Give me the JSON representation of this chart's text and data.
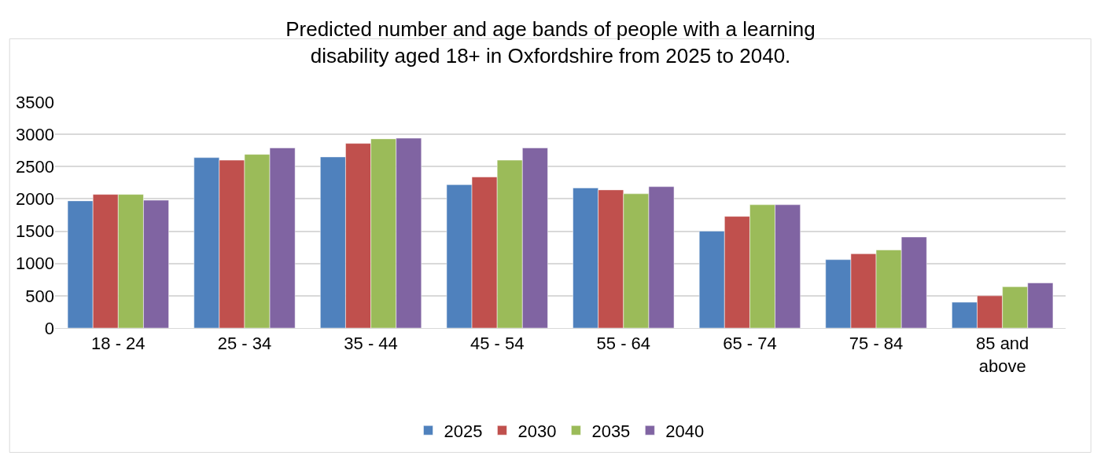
{
  "chart_data": {
    "type": "bar",
    "title": "Predicted number and age bands of people with a learning disability aged 18+ in Oxfordshire from 2025 to 2040.",
    "categories": [
      "18 - 24",
      "25 - 34",
      "35 - 44",
      "45 - 54",
      "55 - 64",
      "65 - 74",
      "75 - 84",
      "85 and above"
    ],
    "series": [
      {
        "name": "2025",
        "color": "#4f81bd",
        "values": [
          1970,
          2640,
          2650,
          2220,
          2170,
          1500,
          1060,
          400
        ]
      },
      {
        "name": "2030",
        "color": "#c0504d",
        "values": [
          2070,
          2600,
          2860,
          2340,
          2140,
          1730,
          1150,
          500
        ]
      },
      {
        "name": "2035",
        "color": "#9bbb59",
        "values": [
          2070,
          2690,
          2930,
          2600,
          2080,
          1910,
          1210,
          640
        ]
      },
      {
        "name": "2040",
        "color": "#8064a2",
        "values": [
          1980,
          2790,
          2940,
          2790,
          2190,
          1910,
          1410,
          700
        ]
      }
    ],
    "ylim": [
      0,
      3500
    ],
    "yticks": [
      0,
      500,
      1000,
      1500,
      2000,
      2500,
      3000,
      3500
    ],
    "grid": "y",
    "legend": "bottom"
  }
}
